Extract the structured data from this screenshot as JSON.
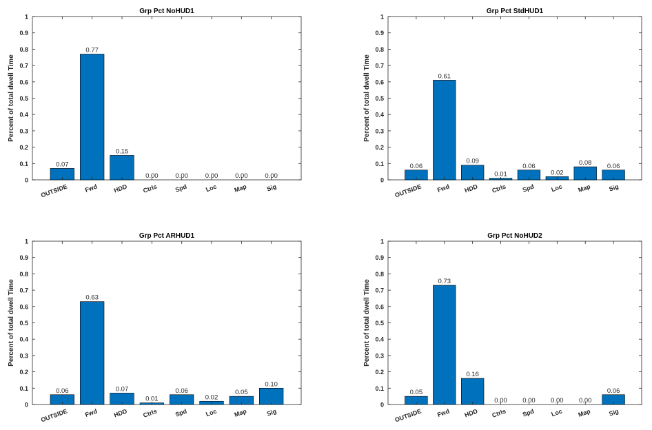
{
  "chart_data": [
    {
      "type": "bar",
      "title": "Grp Pct NoHUD1",
      "ylabel": "Percent of total dwell Time",
      "ylim": [
        0,
        1
      ],
      "yticks": [
        "0",
        "0.1",
        "0.2",
        "0.3",
        "0.4",
        "0.5",
        "0.6",
        "0.7",
        "0.8",
        "0.9",
        "1"
      ],
      "categories": [
        "OUTSIDE",
        "Fwd",
        "HDD",
        "Ctrls",
        "Spd",
        "Loc",
        "Map",
        "Sig"
      ],
      "values": [
        0.07,
        0.77,
        0.15,
        0.0,
        0.0,
        0.0,
        0.0,
        0.0
      ],
      "labels": [
        "0.07",
        "0.77",
        "0.15",
        "0.00",
        "0.00",
        "0.00",
        "0.00",
        "0.00"
      ],
      "bar_color": "#0072BD"
    },
    {
      "type": "bar",
      "title": "Grp Pct StdHUD1",
      "ylabel": "Percent of total dwell Time",
      "ylim": [
        0,
        1
      ],
      "yticks": [
        "0",
        "0.1",
        "0.2",
        "0.3",
        "0.4",
        "0.5",
        "0.6",
        "0.7",
        "0.8",
        "0.9",
        "1"
      ],
      "categories": [
        "OUTSIDE",
        "Fwd",
        "HDD",
        "Ctrls",
        "Spd",
        "Loc",
        "Map",
        "Sig"
      ],
      "values": [
        0.06,
        0.61,
        0.09,
        0.01,
        0.06,
        0.02,
        0.08,
        0.06
      ],
      "labels": [
        "0.06",
        "0.61",
        "0.09",
        "0.01",
        "0.06",
        "0.02",
        "0.08",
        "0.06"
      ],
      "bar_color": "#0072BD"
    },
    {
      "type": "bar",
      "title": "Grp Pct ARHUD1",
      "ylabel": "Percent of total dwell Time",
      "ylim": [
        0,
        1
      ],
      "yticks": [
        "0",
        "0.1",
        "0.2",
        "0.3",
        "0.4",
        "0.5",
        "0.6",
        "0.7",
        "0.8",
        "0.9",
        "1"
      ],
      "categories": [
        "OUTSIDE",
        "Fwd",
        "HDD",
        "Ctrls",
        "Spd",
        "Loc",
        "Map",
        "Sig"
      ],
      "values": [
        0.06,
        0.63,
        0.07,
        0.01,
        0.06,
        0.02,
        0.05,
        0.1
      ],
      "labels": [
        "0.06",
        "0.63",
        "0.07",
        "0.01",
        "0.06",
        "0.02",
        "0.05",
        "0.10"
      ],
      "bar_color": "#0072BD"
    },
    {
      "type": "bar",
      "title": "Grp Pct NoHUD2",
      "ylabel": "Percent of total dwell Time",
      "ylim": [
        0,
        1
      ],
      "yticks": [
        "0",
        "0.1",
        "0.2",
        "0.3",
        "0.4",
        "0.5",
        "0.6",
        "0.7",
        "0.8",
        "0.9",
        "1"
      ],
      "categories": [
        "OUTSIDE",
        "Fwd",
        "HDD",
        "Ctrls",
        "Spd",
        "Loc",
        "Map",
        "Sig"
      ],
      "values": [
        0.05,
        0.73,
        0.16,
        0.0,
        0.0,
        0.0,
        0.0,
        0.06
      ],
      "labels": [
        "0.05",
        "0.73",
        "0.16",
        "0.00",
        "0.00",
        "0.00",
        "0.00",
        "0.06"
      ],
      "bar_color": "#0072BD"
    }
  ]
}
